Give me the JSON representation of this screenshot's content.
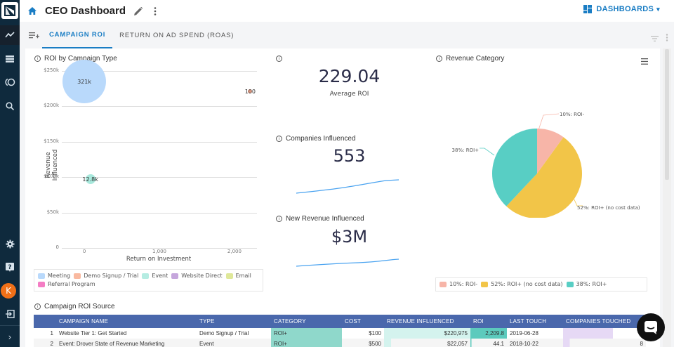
{
  "sidebar": {
    "items": [
      {
        "name": "analytics",
        "icon": "trend-line-icon"
      },
      {
        "name": "lists",
        "icon": "list-icon"
      },
      {
        "name": "campaigns",
        "icon": "circles-icon"
      },
      {
        "name": "search",
        "icon": "search-icon"
      }
    ],
    "bottom_items": [
      {
        "name": "settings",
        "icon": "gear-icon"
      },
      {
        "name": "help",
        "icon": "help-icon"
      },
      {
        "name": "logout",
        "icon": "sign-out-icon"
      }
    ],
    "avatar_initial": "K"
  },
  "header": {
    "title": "CEO Dashboard",
    "dashboards_label": "DASHBOARDS"
  },
  "tabs": [
    {
      "label": "CAMPAIGN ROI",
      "active": true
    },
    {
      "label": "RETURN ON AD SPEND (ROAS)",
      "active": false
    }
  ],
  "roi_chart": {
    "title": "ROI by Campaign Type",
    "chart_data": {
      "type": "scatter",
      "title": "ROI by Campaign Type",
      "xlabel": "Return on Investment",
      "ylabel": "Revenue Influenced",
      "x_ticks": [
        "0",
        "1,000",
        "2,000"
      ],
      "y_ticks": [
        "0",
        "$50k",
        "$100k",
        "$150k",
        "$200k",
        "$250k"
      ],
      "xlim": [
        -300,
        2300
      ],
      "ylim": [
        0,
        250000
      ],
      "points": [
        {
          "series": "Meeting",
          "x": 0,
          "y": 235000,
          "label": "321k",
          "color": "#b9d9fb"
        },
        {
          "series": "Event",
          "x": 80,
          "y": 97000,
          "label": "12.8k",
          "color": "#a8e8dc"
        },
        {
          "series": "Demo Signup / Trial",
          "x": 2209.8,
          "y": 221000,
          "label": "100",
          "color": "#f4a58a"
        }
      ],
      "legend": [
        {
          "label": "Meeting",
          "color": "#b9d9fb"
        },
        {
          "label": "Demo Signup / Trial",
          "color": "#f9b9a0"
        },
        {
          "label": "Event",
          "color": "#b5ece2"
        },
        {
          "label": "Website Direct",
          "color": "#c5a6dc"
        },
        {
          "label": "Email",
          "color": "#dfe89a"
        },
        {
          "label": "Referral Program",
          "color": "#f47dc4"
        }
      ]
    }
  },
  "kpis": {
    "average_roi": {
      "value": "229.04",
      "label": "Average ROI"
    },
    "companies_influenced": {
      "title": "Companies Influenced",
      "value": "553"
    },
    "new_revenue": {
      "title": "New Revenue Influenced",
      "value": "$3M"
    }
  },
  "revenue_category": {
    "title": "Revenue Category",
    "chart_data": {
      "type": "pie",
      "title": "Revenue Category",
      "slices": [
        {
          "label": "ROI-",
          "value": 10,
          "display": "10%: ROI-",
          "color": "#f7b5a8"
        },
        {
          "label": "ROI+ (no cost data)",
          "value": 52,
          "display": "52%: ROI+ (no cost data)",
          "color": "#f2c548"
        },
        {
          "label": "ROI+",
          "value": 38,
          "display": "38%: ROI+",
          "color": "#58cec4"
        }
      ],
      "legend_position": "bottom"
    }
  },
  "table": {
    "title": "Campaign ROI Source",
    "columns": [
      "",
      "CAMPAIGN NAME",
      "TYPE",
      "CATEGORY",
      "COST",
      "REVENUE INFLUENCED",
      "ROI",
      "LAST TOUCH",
      "COMPANIES TOUCHED"
    ],
    "rows": [
      {
        "index": "1",
        "name": "Website Tier 1: Get Started",
        "type": "Demo Signup / Trial",
        "category": "ROI+",
        "cost": "$100",
        "revenue": "$220,975",
        "roi": "2,209.8",
        "last_touch": "2019-06-28",
        "companies": ""
      },
      {
        "index": "2",
        "name": "Event: Drover State of Revenue Marketing",
        "type": "Event",
        "category": "ROI+",
        "cost": "$500",
        "revenue": "$22,057",
        "roi": "44.1",
        "last_touch": "2018-10-22",
        "companies": "8"
      }
    ]
  }
}
